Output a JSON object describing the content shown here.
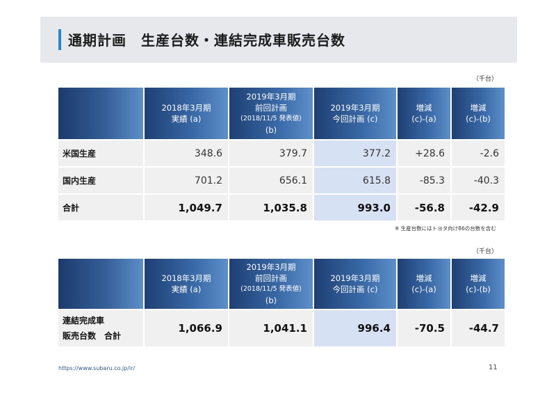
{
  "title": "通期計画　生産台数・連結完成車販売台数",
  "table1": {
    "unit": "（千台）",
    "headers": [
      {
        "l1": "2018年3月期",
        "l2": "実績 (a)"
      },
      {
        "l0": "2019年3月期",
        "l1": "前回計画",
        "l2": "(2018/11/5 発表値)",
        "l3": "(b)"
      },
      {
        "l1": "2019年3月期",
        "l2": "今回計画 (c)"
      },
      {
        "l1": "増減",
        "l2": "(c)-(a)"
      },
      {
        "l1": "増減",
        "l2": "(c)-(b)"
      }
    ],
    "rows": [
      {
        "label": "米国生産",
        "values": [
          "348.6",
          "379.7",
          "377.2",
          "+28.6",
          "-2.6"
        ]
      },
      {
        "label": "国内生産",
        "values": [
          "701.2",
          "656.1",
          "615.8",
          "-85.3",
          "-40.3"
        ]
      },
      {
        "label": "合計",
        "values": [
          "1,049.7",
          "1,035.8",
          "993.0",
          "-56.8",
          "-42.9"
        ]
      }
    ],
    "note": "※ 生産台数にはトヨタ向け86の台数を含む"
  },
  "table2": {
    "unit": "（千台）",
    "headers": [
      {
        "l1": "2018年3月期",
        "l2": "実績 (a)"
      },
      {
        "l0": "2019年3月期",
        "l1": "前回計画",
        "l2": "(2018/11/5 発表値)",
        "l3": "(b)"
      },
      {
        "l1": "2019年3月期",
        "l2": "今回計画 (c)"
      },
      {
        "l1": "増減",
        "l2": "(c)-(a)"
      },
      {
        "l1": "増減",
        "l2": "(c)-(b)"
      }
    ],
    "rows": [
      {
        "label_line1": "連結完成車",
        "label_line2": "販売台数　合計",
        "values": [
          "1,066.9",
          "1,041.1",
          "996.4",
          "-70.5",
          "-44.7"
        ]
      }
    ]
  },
  "footer": {
    "url": "https://www.subaru.co.jp/ir/",
    "page": "11"
  }
}
